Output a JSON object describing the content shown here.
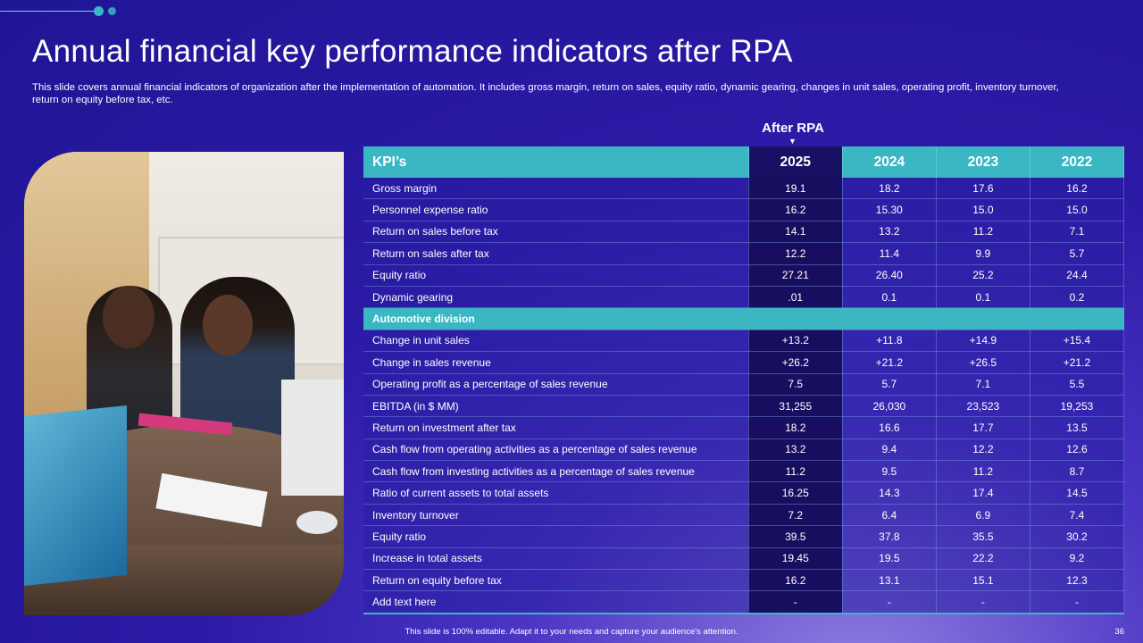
{
  "title": "Annual financial key performance indicators after RPA",
  "subtitle": "This slide covers annual financial indicators of organization after the implementation of automation. It includes gross margin, return on sales, equity ratio, dynamic gearing, changes in unit sales, operating profit, inventory turnover, return on equity before tax, etc.",
  "after_label": "After RPA",
  "table": {
    "headers": [
      "KPI’s",
      "2025",
      "2024",
      "2023",
      "2022"
    ],
    "rows": [
      [
        "Gross margin",
        "19.1",
        "18.2",
        "17.6",
        "16.2"
      ],
      [
        "Personnel expense ratio",
        "16.2",
        "15.30",
        "15.0",
        "15.0"
      ],
      [
        "Return on sales before tax",
        "14.1",
        "13.2",
        "11.2",
        "7.1"
      ],
      [
        "Return on sales after tax",
        "12.2",
        "11.4",
        "9.9",
        "5.7"
      ],
      [
        "Equity ratio",
        "27.21",
        "26.40",
        "25.2",
        "24.4"
      ],
      [
        "Dynamic gearing",
        ".01",
        "0.1",
        "0.1",
        "0.2"
      ]
    ],
    "section_label": "Automotive division",
    "section_rows": [
      [
        "Change in unit sales",
        "+13.2",
        "+11.8",
        "+14.9",
        "+15.4"
      ],
      [
        "Change in sales revenue",
        "+26.2",
        "+21.2",
        "+26.5",
        "+21.2"
      ],
      [
        "Operating profit as a percentage of sales revenue",
        "7.5",
        "5.7",
        "7.1",
        "5.5"
      ],
      [
        "EBITDA (in $ MM)",
        "31,255",
        "26,030",
        "23,523",
        "19,253"
      ],
      [
        "Return on investment after tax",
        "18.2",
        "16.6",
        "17.7",
        "13.5"
      ],
      [
        "Cash flow from operating activities as a percentage of sales revenue",
        "13.2",
        "9.4",
        "12.2",
        "12.6"
      ],
      [
        "Cash flow from investing activities as a percentage of sales revenue",
        "11.2",
        "9.5",
        "11.2",
        "8.7"
      ],
      [
        "Ratio of current assets to total assets",
        "16.25",
        "14.3",
        "17.4",
        "14.5"
      ],
      [
        "Inventory turnover",
        "7.2",
        "6.4",
        "6.9",
        "7.4"
      ],
      [
        "Equity ratio",
        "39.5",
        "37.8",
        "35.5",
        "30.2"
      ],
      [
        "Increase in total assets",
        "19.45",
        "19.5",
        "22.2",
        "9.2"
      ],
      [
        "Return on equity before tax",
        "16.2",
        "13.1",
        "15.1",
        "12.3"
      ],
      [
        "Add text here",
        "-",
        "-",
        "-",
        "-"
      ]
    ]
  },
  "footer": "This slide is 100% editable. Adapt it to your needs and capture your audience's attention.",
  "page_number": "36",
  "colors": {
    "accent": "#3bb7c4",
    "highlight_column": "#180e60",
    "background": "#2b1aa6"
  }
}
